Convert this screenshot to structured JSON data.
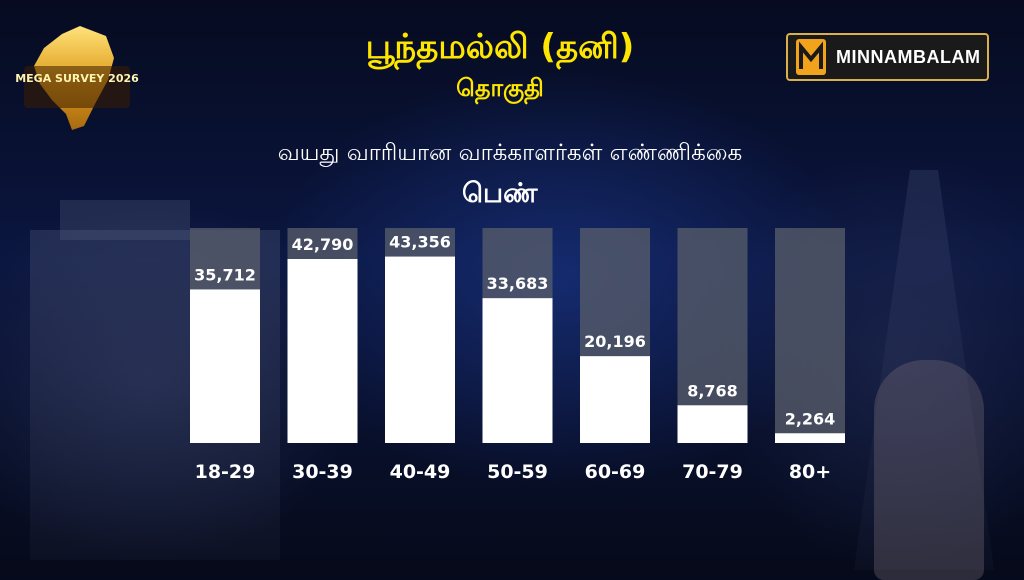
{
  "title": "பூந்தமல்லி (தனி)",
  "subtitle": "தொகுதி",
  "badge_text": "MEGA SURVEY 2026",
  "brand": "MINNAMBALAM",
  "colors": {
    "title": "#ffe600",
    "bar_fill": "#ffffff",
    "bar_track": "#5a5f6b",
    "brand_accent": "#f2a31c"
  },
  "chart_data": {
    "type": "bar",
    "title": "வயது வாரியான வாக்காளர்கள் எண்ணிக்கை",
    "subtitle": "பெண்",
    "categories": [
      "18-29",
      "30-39",
      "40-49",
      "50-59",
      "60-69",
      "70-79",
      "80+"
    ],
    "values": [
      35712,
      42790,
      43356,
      33683,
      20196,
      8768,
      2264
    ],
    "value_labels": [
      "35,712",
      "42,790",
      "43,356",
      "33,683",
      "20,196",
      "8,768",
      "2,264"
    ],
    "xlabel": "",
    "ylabel": "",
    "ylim": [
      0,
      50000
    ],
    "grid": false,
    "legend": "none"
  }
}
